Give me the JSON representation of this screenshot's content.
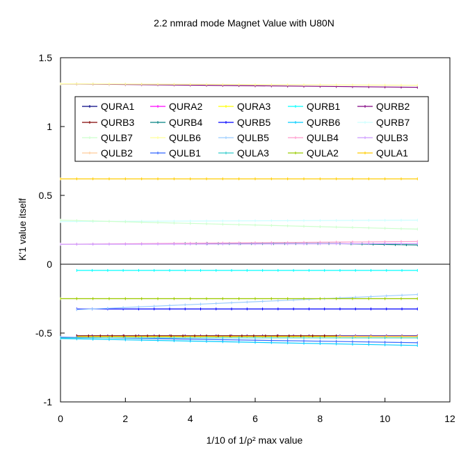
{
  "chart_data": {
    "type": "line",
    "title": "2.2 nmrad mode Magnet Value with U80N",
    "xlabel": "1/10 of 1/ρ² max value",
    "ylabel": "K'1 value itself",
    "xlim": [
      0,
      12
    ],
    "ylim": [
      -1,
      1.5
    ],
    "xticks": [
      "0",
      "2",
      "4",
      "6",
      "8",
      "10",
      "12"
    ],
    "yticks": [
      "-1",
      "-0.5",
      "0",
      "0.5",
      "1",
      "1.5"
    ],
    "grid": false,
    "legend_position": "upper-center, 5 columns",
    "series": [
      {
        "name": "QURA1",
        "color": "#000080",
        "x": [
          0.5,
          11
        ],
        "y": [
          -0.52,
          -0.52
        ]
      },
      {
        "name": "QURA2",
        "color": "#ff00ff",
        "x": [
          0.5,
          11
        ],
        "y": [
          -0.523,
          -0.523
        ]
      },
      {
        "name": "QURA3",
        "color": "#ffff00",
        "x": [
          0.5,
          11
        ],
        "y": [
          -0.526,
          -0.526
        ]
      },
      {
        "name": "QURB1",
        "color": "#00ffff",
        "x": [
          0.5,
          11
        ],
        "y": [
          -0.045,
          -0.045
        ]
      },
      {
        "name": "QURB2",
        "color": "#800080",
        "x": [
          0,
          11
        ],
        "y": [
          1.31,
          1.285
        ]
      },
      {
        "name": "QURB3",
        "color": "#800000",
        "x": [
          0.5,
          8.5
        ],
        "y": [
          -0.52,
          -0.52
        ]
      },
      {
        "name": "QURB4",
        "color": "#008080",
        "x": [
          3.5,
          6.5,
          8.5,
          11
        ],
        "y": [
          0.15,
          0.15,
          0.15,
          0.14
        ]
      },
      {
        "name": "QURB5",
        "color": "#0000ff",
        "x": [
          0.5,
          11
        ],
        "y": [
          -0.325,
          -0.325
        ]
      },
      {
        "name": "QURB6",
        "color": "#00ccff",
        "x": [
          0,
          11
        ],
        "y": [
          -0.54,
          -0.59
        ]
      },
      {
        "name": "QURB7",
        "color": "#ccffff",
        "x": [
          0,
          11
        ],
        "y": [
          0.31,
          0.32
        ]
      },
      {
        "name": "QULB7",
        "color": "#ccffcc",
        "x": [
          0,
          11
        ],
        "y": [
          0.32,
          0.255
        ]
      },
      {
        "name": "QULB6",
        "color": "#ffff99",
        "x": [
          0,
          11
        ],
        "y": [
          1.31,
          1.3
        ]
      },
      {
        "name": "QULB5",
        "color": "#99ccff",
        "x": [
          0.5,
          11
        ],
        "y": [
          -0.33,
          -0.22
        ]
      },
      {
        "name": "QULB4",
        "color": "#ff99cc",
        "x": [
          0,
          11
        ],
        "y": [
          0.145,
          0.165
        ]
      },
      {
        "name": "QULB3",
        "color": "#cc99ff",
        "x": [
          0,
          11
        ],
        "y": [
          0.145,
          0.15
        ]
      },
      {
        "name": "QULB2",
        "color": "#ffcc99",
        "x": [
          0,
          11
        ],
        "y": [
          -0.25,
          -0.25
        ]
      },
      {
        "name": "QULB1",
        "color": "#3366ff",
        "x": [
          0,
          11
        ],
        "y": [
          -0.53,
          -0.57
        ]
      },
      {
        "name": "QULA3",
        "color": "#33cccc",
        "x": [
          0,
          11
        ],
        "y": [
          -0.535,
          -0.535
        ]
      },
      {
        "name": "QULA2",
        "color": "#99cc00",
        "x": [
          0,
          11
        ],
        "y": [
          -0.25,
          -0.25
        ]
      },
      {
        "name": "QULA1",
        "color": "#ffcc00",
        "x": [
          0,
          11
        ],
        "y": [
          0.62,
          0.62
        ]
      }
    ]
  }
}
